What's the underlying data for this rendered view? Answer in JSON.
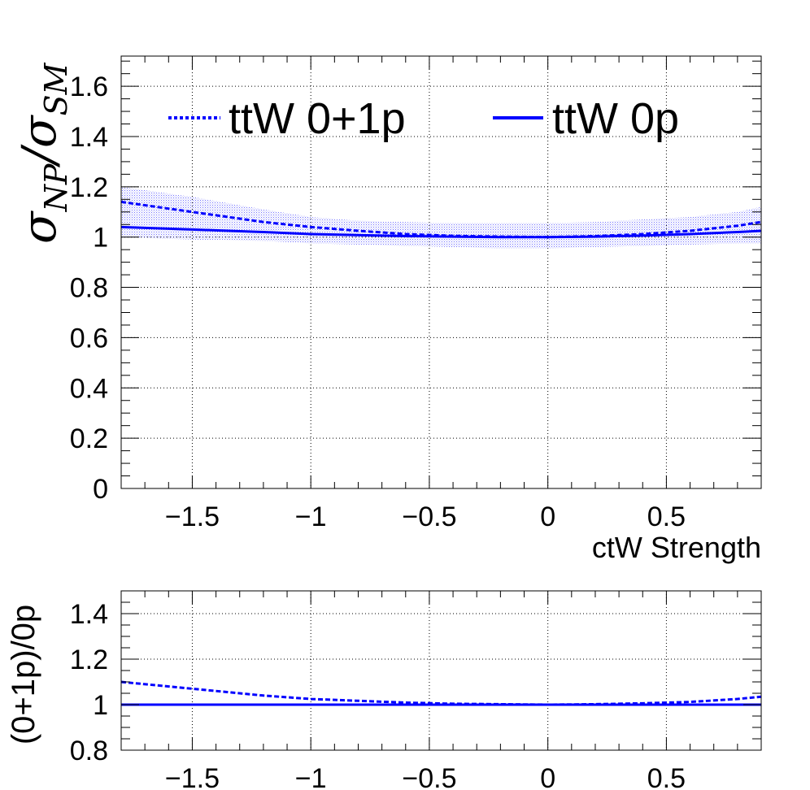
{
  "chart_data": [
    {
      "type": "line",
      "xlabel": "ctW Strength",
      "ylabel": {
        "sym1": "σ",
        "sub1": "NP",
        "sep": "/",
        "sym2": "σ",
        "sub2": "SM"
      },
      "xlim": [
        -1.8,
        0.9
      ],
      "ylim": [
        0,
        1.72
      ],
      "grid": true,
      "legend_position": "top",
      "x_ticks": [
        -1.5,
        -1,
        -0.5,
        0,
        0.5
      ],
      "x_tick_labels": [
        "−1.5",
        "−1",
        "−0.5",
        "0",
        "0.5"
      ],
      "y_ticks": [
        0,
        0.2,
        0.4,
        0.6,
        0.8,
        1,
        1.2,
        1.4,
        1.6
      ],
      "y_tick_labels": [
        "0",
        "0.2",
        "0.4",
        "0.6",
        "0.8",
        "1",
        "1.2",
        "1.4",
        "1.6"
      ],
      "x": [
        -1.8,
        -1.5,
        -1.2,
        -1.0,
        -0.8,
        -0.6,
        -0.4,
        -0.2,
        0.0,
        0.2,
        0.4,
        0.6,
        0.8,
        0.9
      ],
      "series": [
        {
          "name": "ttW 0+1p",
          "style": "dashed",
          "color": "#0000ff",
          "values": [
            1.14,
            1.1,
            1.06,
            1.04,
            1.025,
            1.012,
            1.005,
            1.002,
            1.0,
            1.004,
            1.012,
            1.025,
            1.045,
            1.06
          ]
        },
        {
          "name": "ttW 0p",
          "style": "solid",
          "color": "#0000ff",
          "values": [
            1.04,
            1.03,
            1.02,
            1.012,
            1.008,
            1.004,
            1.002,
            1.0,
            1.0,
            1.002,
            1.006,
            1.012,
            1.02,
            1.025
          ]
        }
      ],
      "band": {
        "color": "#0000ff",
        "lower": [
          1.0,
          0.99,
          0.985,
          0.975,
          0.97,
          0.965,
          0.96,
          0.955,
          0.955,
          0.96,
          0.965,
          0.97,
          0.975,
          0.975
        ],
        "upper": [
          1.2,
          1.16,
          1.11,
          1.08,
          1.065,
          1.06,
          1.055,
          1.055,
          1.055,
          1.06,
          1.07,
          1.08,
          1.1,
          1.12
        ]
      }
    },
    {
      "type": "line",
      "ylabel": "(0+1p)/0p",
      "xlim": [
        -1.8,
        0.9
      ],
      "ylim": [
        0.8,
        1.5
      ],
      "grid": true,
      "x_ticks": [
        -1.5,
        -1,
        -0.5,
        0,
        0.5
      ],
      "x_tick_labels": [
        "−1.5",
        "−1",
        "−0.5",
        "0",
        "0.5"
      ],
      "y_ticks": [
        0.8,
        1,
        1.2,
        1.4
      ],
      "y_tick_labels": [
        "0.8",
        "1",
        "1.2",
        "1.4"
      ],
      "x": [
        -1.8,
        -1.5,
        -1.2,
        -1.0,
        -0.8,
        -0.6,
        -0.4,
        -0.2,
        0.0,
        0.2,
        0.4,
        0.6,
        0.8,
        0.9
      ],
      "series": [
        {
          "style": "dashed",
          "color": "#0000ff",
          "values": [
            1.1,
            1.07,
            1.04,
            1.025,
            1.017,
            1.009,
            1.004,
            1.002,
            1.0,
            1.002,
            1.006,
            1.012,
            1.025,
            1.035
          ]
        },
        {
          "style": "solid",
          "color": "#0000ff",
          "values": [
            1.0,
            1.0,
            1.0,
            1.0,
            1.0,
            1.0,
            1.0,
            1.0,
            1.0,
            1.0,
            1.0,
            1.0,
            1.0,
            1.0
          ]
        }
      ]
    }
  ]
}
